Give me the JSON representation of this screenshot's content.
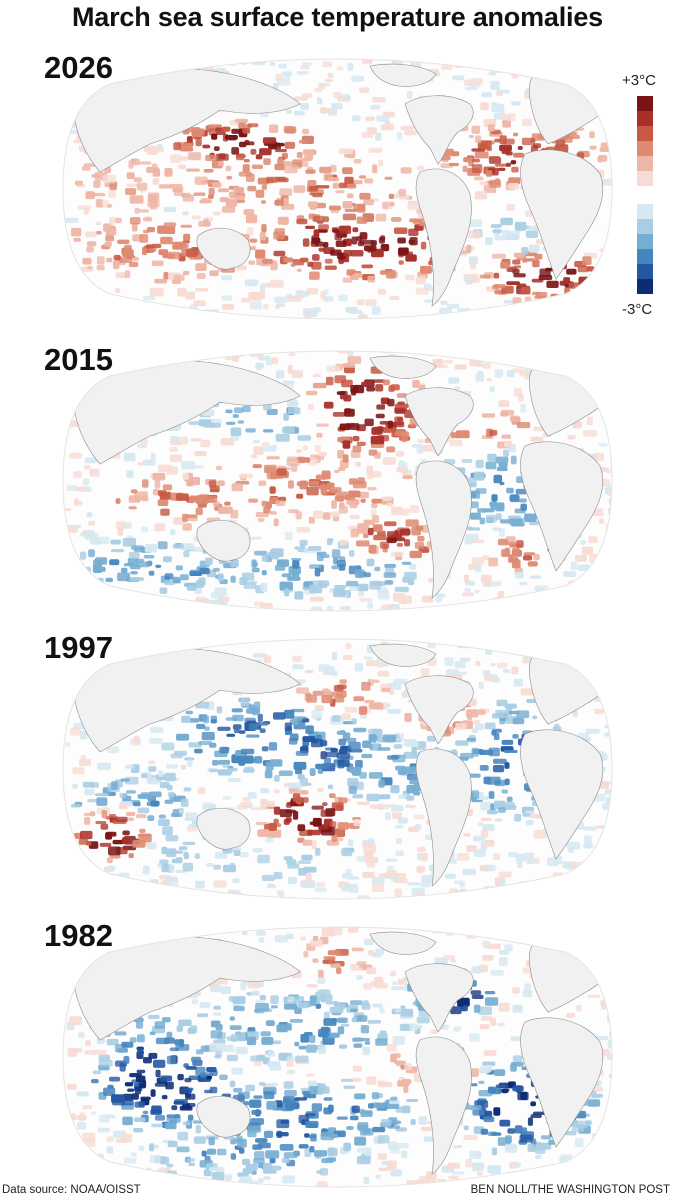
{
  "title": "March sea surface temperature anomalies",
  "legend": {
    "max_label": "+3°C",
    "min_label": "-3°C"
  },
  "maps": [
    {
      "year": "2026",
      "pattern": "warm"
    },
    {
      "year": "2015",
      "pattern": "mixed"
    },
    {
      "year": "1997",
      "pattern": "cool"
    },
    {
      "year": "1982",
      "pattern": "coolest"
    }
  ],
  "colors": {
    "land": "#f1f1f1",
    "warm": [
      "#f7dcd4",
      "#eeb6a5",
      "#de8a72",
      "#c85a44",
      "#a8302a",
      "#7a1416"
    ],
    "cool": [
      "#d6e8f1",
      "#a9cde3",
      "#76add2",
      "#4685bd",
      "#2357a3",
      "#0d2c76"
    ]
  },
  "footer": {
    "source": "Data source: NOAA/OISST",
    "credit": "BEN NOLL/THE WASHINGTON POST"
  }
}
